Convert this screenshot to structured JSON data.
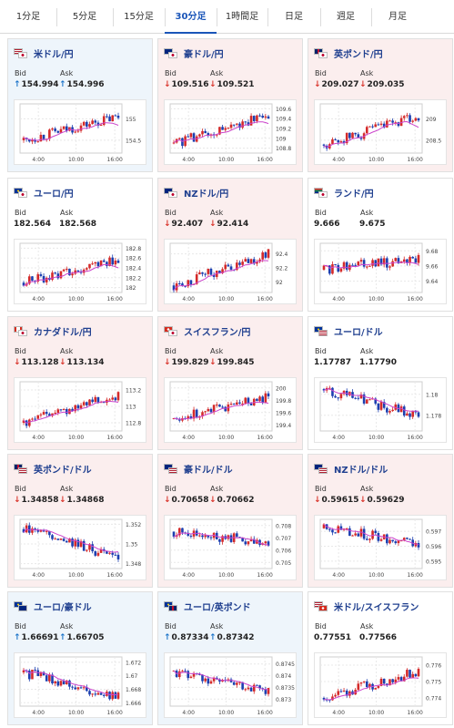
{
  "tabs": [
    "1分足",
    "5分足",
    "15分足",
    "30分足",
    "1時間足",
    "日足",
    "週足",
    "月足"
  ],
  "active_tab": 3,
  "labels": {
    "bid": "Bid",
    "ask": "Ask"
  },
  "colors": {
    "accent": "#1a55b8",
    "up_card": "#eef5fb",
    "down_card": "#fbeeee",
    "up_arrow": "#1a73c9",
    "down_arrow": "#d9342b",
    "candle_up": "#d42a2a",
    "candle_down": "#1c3fb0",
    "ma_line": "#cc44cc"
  },
  "pairs": [
    {
      "name": "米ドル/円",
      "trend": "up",
      "flags": [
        "us-flag",
        "jp-flag"
      ],
      "bid": "154.994",
      "ask": "154.996",
      "bid_dir": "up",
      "ask_dir": "up",
      "x_ticks": [
        "4:00",
        "10:00",
        "16:00"
      ],
      "y_ticks": [
        "155",
        "154.5"
      ],
      "ymin": 154.2,
      "ymax": 155.35,
      "start": 154.5,
      "end": 155.05,
      "ma_end": 154.85
    },
    {
      "name": "豪ドル/円",
      "trend": "down",
      "flags": [
        "au-flag",
        "jp-flag"
      ],
      "bid": "109.516",
      "ask": "109.521",
      "bid_dir": "down",
      "ask_dir": "down",
      "x_ticks": [
        "4:00",
        "10:00",
        "16:00"
      ],
      "y_ticks": [
        "109.6",
        "109.4",
        "109.2",
        "109",
        "108.8"
      ],
      "ymin": 108.7,
      "ymax": 109.7,
      "start": 108.9,
      "end": 109.45,
      "ma_end": 109.3
    },
    {
      "name": "英ポンド/円",
      "trend": "down",
      "flags": [
        "gb-flag",
        "jp-flag"
      ],
      "bid": "209.027",
      "ask": "209.035",
      "bid_dir": "down",
      "ask_dir": "down",
      "x_ticks": [
        "4:00",
        "10:00",
        "16:00"
      ],
      "y_ticks": [
        "209",
        "208.5"
      ],
      "ymin": 208.2,
      "ymax": 209.35,
      "start": 208.4,
      "end": 209.05,
      "ma_end": 208.8
    },
    {
      "name": "ユーロ/円",
      "trend": "flat",
      "flags": [
        "eu-flag",
        "jp-flag"
      ],
      "bid": "182.564",
      "ask": "182.568",
      "bid_dir": "",
      "ask_dir": "",
      "x_ticks": [
        "4:00",
        "10:00",
        "16:00"
      ],
      "y_ticks": [
        "182.8",
        "182.6",
        "182.4",
        "182.2",
        "182"
      ],
      "ymin": 181.9,
      "ymax": 182.9,
      "start": 182.1,
      "end": 182.6,
      "ma_end": 182.4
    },
    {
      "name": "NZドル/円",
      "trend": "down",
      "flags": [
        "nz-flag",
        "jp-flag"
      ],
      "bid": "92.407",
      "ask": "92.414",
      "bid_dir": "down",
      "ask_dir": "down",
      "x_ticks": [
        "4:00",
        "10:00",
        "16:00"
      ],
      "y_ticks": [
        "92.4",
        "92.2",
        "92"
      ],
      "ymin": 91.85,
      "ymax": 92.55,
      "start": 91.95,
      "end": 92.4,
      "ma_end": 92.3
    },
    {
      "name": "ランド/円",
      "trend": "flat",
      "flags": [
        "za-flag",
        "jp-flag"
      ],
      "bid": "9.666",
      "ask": "9.675",
      "bid_dir": "",
      "ask_dir": "",
      "x_ticks": [
        "4:00",
        "10:00",
        "16:00"
      ],
      "y_ticks": [
        "9.68",
        "9.66",
        "9.64"
      ],
      "ymin": 9.625,
      "ymax": 9.69,
      "start": 9.655,
      "end": 9.67,
      "ma_end": 9.662
    },
    {
      "name": "カナダドル/円",
      "trend": "down",
      "flags": [
        "ca-flag",
        "jp-flag"
      ],
      "bid": "113.128",
      "ask": "113.134",
      "bid_dir": "down",
      "ask_dir": "down",
      "x_ticks": [
        "4:00",
        "10:00",
        "16:00"
      ],
      "y_ticks": [
        "113.2",
        "113",
        "112.8"
      ],
      "ymin": 112.7,
      "ymax": 113.3,
      "start": 112.8,
      "end": 113.15,
      "ma_end": 113.05
    },
    {
      "name": "スイスフラン/円",
      "trend": "down",
      "flags": [
        "ch-flag",
        "jp-flag"
      ],
      "bid": "199.829",
      "ask": "199.845",
      "bid_dir": "down",
      "ask_dir": "down",
      "x_ticks": [
        "4:00",
        "10:00",
        "16:00"
      ],
      "y_ticks": [
        "200",
        "199.8",
        "199.6",
        "199.4"
      ],
      "ymin": 199.3,
      "ymax": 200.1,
      "start": 199.5,
      "end": 199.85,
      "ma_end": 199.75
    },
    {
      "name": "ユーロ/ドル",
      "trend": "flat",
      "flags": [
        "eu-flag",
        "us-flag"
      ],
      "bid": "1.17787",
      "ask": "1.17790",
      "bid_dir": "",
      "ask_dir": "",
      "x_ticks": [
        "4:00",
        "10:00",
        "16:00"
      ],
      "y_ticks": [
        "1.18",
        "1.178"
      ],
      "ymin": 1.1765,
      "ymax": 1.1812,
      "start": 1.1805,
      "end": 1.1779,
      "ma_end": 1.1784
    },
    {
      "name": "英ポンド/ドル",
      "trend": "down",
      "flags": [
        "gb-flag",
        "us-flag"
      ],
      "bid": "1.34858",
      "ask": "1.34868",
      "bid_dir": "down",
      "ask_dir": "down",
      "x_ticks": [
        "4:00",
        "10:00",
        "16:00"
      ],
      "y_ticks": [
        "1.352",
        "1.35",
        "1.348"
      ],
      "ymin": 1.3475,
      "ymax": 1.3525,
      "start": 1.3515,
      "end": 1.3486,
      "ma_end": 1.3492
    },
    {
      "name": "豪ドル/ドル",
      "trend": "down",
      "flags": [
        "au-flag",
        "us-flag"
      ],
      "bid": "0.70658",
      "ask": "0.70662",
      "bid_dir": "down",
      "ask_dir": "down",
      "x_ticks": [
        "4:00",
        "10:00",
        "16:00"
      ],
      "y_ticks": [
        "0.708",
        "0.707",
        "0.706",
        "0.705"
      ],
      "ymin": 0.7045,
      "ymax": 0.7085,
      "start": 0.7075,
      "end": 0.7066,
      "ma_end": 0.7064
    },
    {
      "name": "NZドル/ドル",
      "trend": "down",
      "flags": [
        "nz-flag",
        "us-flag"
      ],
      "bid": "0.59615",
      "ask": "0.59629",
      "bid_dir": "down",
      "ask_dir": "down",
      "x_ticks": [
        "4:00",
        "10:00",
        "16:00"
      ],
      "y_ticks": [
        "0.597",
        "0.596",
        "0.595"
      ],
      "ymin": 0.5945,
      "ymax": 0.5978,
      "start": 0.5972,
      "end": 0.5962,
      "ma_end": 0.5961
    },
    {
      "name": "ユーロ/豪ドル",
      "trend": "up",
      "flags": [
        "eu-flag",
        "au-flag"
      ],
      "bid": "1.66691",
      "ask": "1.66705",
      "bid_dir": "up",
      "ask_dir": "up",
      "x_ticks": [
        "4:00",
        "10:00",
        "16:00"
      ],
      "y_ticks": [
        "1.672",
        "1.67",
        "1.668",
        "1.666"
      ],
      "ymin": 1.6655,
      "ymax": 1.6728,
      "start": 1.6705,
      "end": 1.6667,
      "ma_end": 1.6672
    },
    {
      "name": "ユーロ/英ポンド",
      "trend": "up",
      "flags": [
        "eu-flag",
        "gb-flag"
      ],
      "bid": "0.87334",
      "ask": "0.87342",
      "bid_dir": "up",
      "ask_dir": "up",
      "x_ticks": [
        "4:00",
        "10:00",
        "16:00"
      ],
      "y_ticks": [
        "0.8745",
        "0.874",
        "0.8735",
        "0.873"
      ],
      "ymin": 0.8727,
      "ymax": 0.8748,
      "start": 0.8742,
      "end": 0.8733,
      "ma_end": 0.8734
    },
    {
      "name": "米ドル/スイスフラン",
      "trend": "flat",
      "flags": [
        "us-flag",
        "ch-flag"
      ],
      "bid": "0.77551",
      "ask": "0.77566",
      "bid_dir": "",
      "ask_dir": "",
      "x_ticks": [
        "4:00",
        "10:00",
        "16:00"
      ],
      "y_ticks": [
        "0.776",
        "0.775",
        "0.774"
      ],
      "ymin": 0.7735,
      "ymax": 0.7765,
      "start": 0.774,
      "end": 0.7756,
      "ma_end": 0.7752
    }
  ]
}
